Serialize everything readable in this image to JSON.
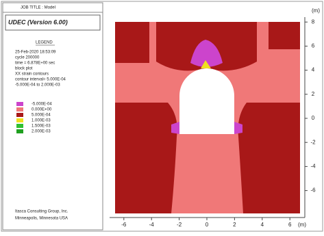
{
  "job_title": "JOB TITLE : Model",
  "program": "UDEC (Version 6.00)",
  "legend": {
    "heading": "LEGEND",
    "lines": [
      "25-Feb-2020 18:53:09",
      "cycle 200000",
      "time = 6.878E+00 sec",
      "block plot",
      "XX strain contours",
      "contour interval= 5.000E-04",
      "-5.000E-04 to 2.000E-03"
    ],
    "contours": [
      {
        "label": "-5.000E-04",
        "color": "#cc44cc"
      },
      {
        "label": "0.000E+00",
        "color": "#f07878"
      },
      {
        "label": "5.000E-04",
        "color": "#a81818"
      },
      {
        "label": "1.000E-03",
        "color": "#f0e020"
      },
      {
        "label": "1.500E-03",
        "color": "#30c030"
      },
      {
        "label": "2.000E-03",
        "color": "#20a020"
      }
    ]
  },
  "footer": [
    "Itasca Consulting Group, Inc.",
    "Minneapolis, Minnesota USA"
  ],
  "x_axis": {
    "ticks": [
      -6,
      -4,
      -2,
      0,
      2,
      4,
      6
    ],
    "unit": "(m)"
  },
  "y_axis": {
    "ticks": [
      -6,
      -4,
      -2,
      0,
      2,
      4,
      6,
      8
    ],
    "unit": "(m)"
  }
}
